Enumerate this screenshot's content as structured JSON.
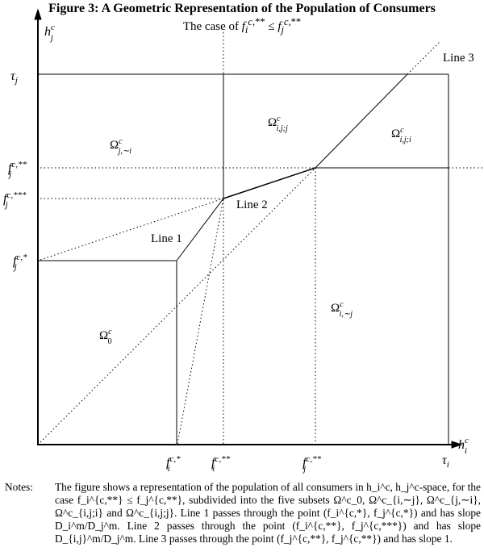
{
  "title": "Figure 3: A Geometric Representation of the Population of Consumers",
  "subtitle": "The case of f_i^{c,**} ≤ f_j^{c,**}",
  "axes": {
    "y_label": "h_j^c",
    "x_label": "h_i^c",
    "y_max": "τj",
    "x_max": "τi"
  },
  "y_ticks": [
    "f_j^{c,**}",
    "f_j^{c,***}",
    "f_j^{c,*}"
  ],
  "x_ticks": [
    "f_i^{c,*}",
    "f_i^{c,**}",
    "f_j^{c,**}"
  ],
  "regions": [
    "Ω^c_{j,∼i}",
    "Ω^c_{i,j;j}",
    "Ω^c_{i,j;i}",
    "Ω^c_0",
    "Ω^c_{i,∼j}"
  ],
  "lines": [
    "Line 1",
    "Line 2",
    "Line 3"
  ],
  "notes": {
    "heading": "Notes:",
    "body": "The figure shows a representation of the population of all consumers in h_i^c, h_j^c-space, for the case f_i^{c,**} ≤ f_j^{c,**}, subdivided into the five subsets Ω^c_0, Ω^c_{i,∼j}, Ω^c_{j,∼i}, Ω^c_{i,j;i} and Ω^c_{i,j;j}. Line 1 passes through the point (f_i^{c,*}, f_j^{c,*}) and has slope D_i^m/D_j^m. Line 2 passes through the point (f_i^{c,**}, f_j^{c,***}) and has slope D_{i,j}^m/D_j^m. Line 3 passes through the point (f_j^{c,**}, f_j^{c,**}) and has slope 1."
  }
}
